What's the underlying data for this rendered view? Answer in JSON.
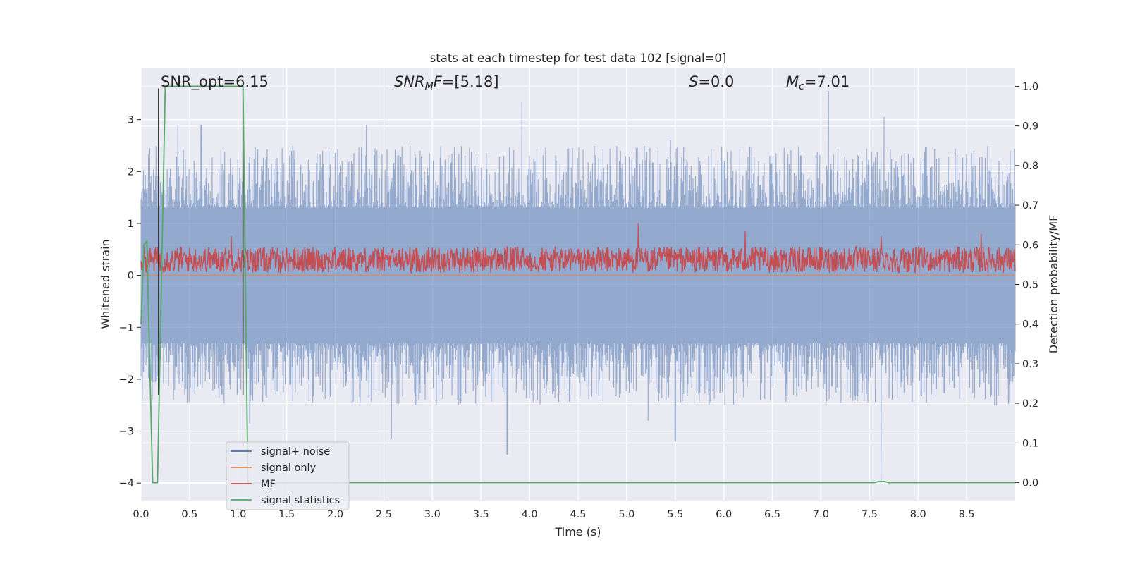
{
  "chart_data": {
    "type": "line",
    "title": "stats at each timestep for test data 102 [signal=0]",
    "xlabel": "Time (s)",
    "ylabel": "Whitened strain",
    "ylabel_right": "Detection probability/MF",
    "xlim": [
      0.0,
      9.0
    ],
    "ylim": [
      -4.35,
      4.0
    ],
    "ylim_right": [
      -0.047,
      1.047
    ],
    "x_ticks": [
      "0.0",
      "0.5",
      "1.0",
      "1.5",
      "2.0",
      "2.5",
      "3.0",
      "3.5",
      "4.0",
      "4.5",
      "5.0",
      "5.5",
      "6.0",
      "6.5",
      "7.0",
      "7.5",
      "8.0",
      "8.5"
    ],
    "y_ticks": [
      "3",
      "2",
      "1",
      "0",
      "−1",
      "−2",
      "−3",
      "−4"
    ],
    "y_ticks_right": [
      "1.0",
      "0.9",
      "0.8",
      "0.7",
      "0.6",
      "0.5",
      "0.4",
      "0.3",
      "0.2",
      "0.1",
      "0.0"
    ],
    "grid": true,
    "legend_position": "lower-left",
    "annotations": {
      "snr_opt": "SNR_opt=6.15",
      "snr_mf_main": "SNR",
      "snr_mf_sub": "M",
      "snr_mf_rest": "F",
      "snr_mf_value": "=[5.18]",
      "s_symbol": "S",
      "s_value": "=0.0",
      "mc_symbol": "M",
      "mc_sub": "c",
      "mc_value": "=7.01"
    },
    "series": [
      {
        "name": "signal+ noise",
        "color": "#4c72b0",
        "axis": "left",
        "x_range": [
          0.0,
          9.0
        ],
        "baseline_band": [
          -1.3,
          1.3
        ],
        "peaks": [
          {
            "x": 0.38,
            "y": 2.9
          },
          {
            "x": 0.62,
            "y": 2.9
          },
          {
            "x": 1.55,
            "y": 2.4
          },
          {
            "x": 2.32,
            "y": 2.9
          },
          {
            "x": 3.92,
            "y": 3.35
          },
          {
            "x": 5.45,
            "y": 2.6
          },
          {
            "x": 7.08,
            "y": 3.55
          },
          {
            "x": 7.65,
            "y": 3.05
          },
          {
            "x": 8.95,
            "y": 2.4
          }
        ],
        "troughs": [
          {
            "x": 2.58,
            "y": -3.15
          },
          {
            "x": 3.77,
            "y": -3.45
          },
          {
            "x": 5.5,
            "y": -3.2
          },
          {
            "x": 7.62,
            "y": -4.0
          },
          {
            "x": 1.12,
            "y": -2.85
          },
          {
            "x": 5.22,
            "y": -2.8
          }
        ]
      },
      {
        "name": "signal only",
        "color": "#dd8452",
        "axis": "left",
        "values_constant": 0.0
      },
      {
        "name": "MF",
        "color": "#c44e52",
        "axis": "left",
        "baseline_band": [
          0.05,
          0.55
        ],
        "peaks": [
          {
            "x": 0.93,
            "y": 0.75
          },
          {
            "x": 5.12,
            "y": 1.0
          },
          {
            "x": 6.22,
            "y": 0.85
          },
          {
            "x": 7.62,
            "y": 0.75
          },
          {
            "x": 8.65,
            "y": 0.8
          }
        ]
      },
      {
        "name": "signal statistics",
        "color": "#55a868",
        "axis": "right",
        "x": [
          0.0,
          0.03,
          0.06,
          0.1,
          0.12,
          0.17,
          0.25,
          1.05,
          1.1,
          1.15,
          2.0,
          7.55,
          7.6,
          7.65,
          7.7,
          9.0
        ],
        "y": [
          0.4,
          0.6,
          0.61,
          0.2,
          0.0,
          0.0,
          1.0,
          1.0,
          0.0,
          0.0,
          0.0,
          0.0,
          0.003,
          0.003,
          0.0,
          0.0
        ]
      }
    ],
    "vertical_lines": [
      {
        "x": 0.18,
        "color": "#333333"
      },
      {
        "x": 1.05,
        "color": "#333333"
      }
    ]
  }
}
